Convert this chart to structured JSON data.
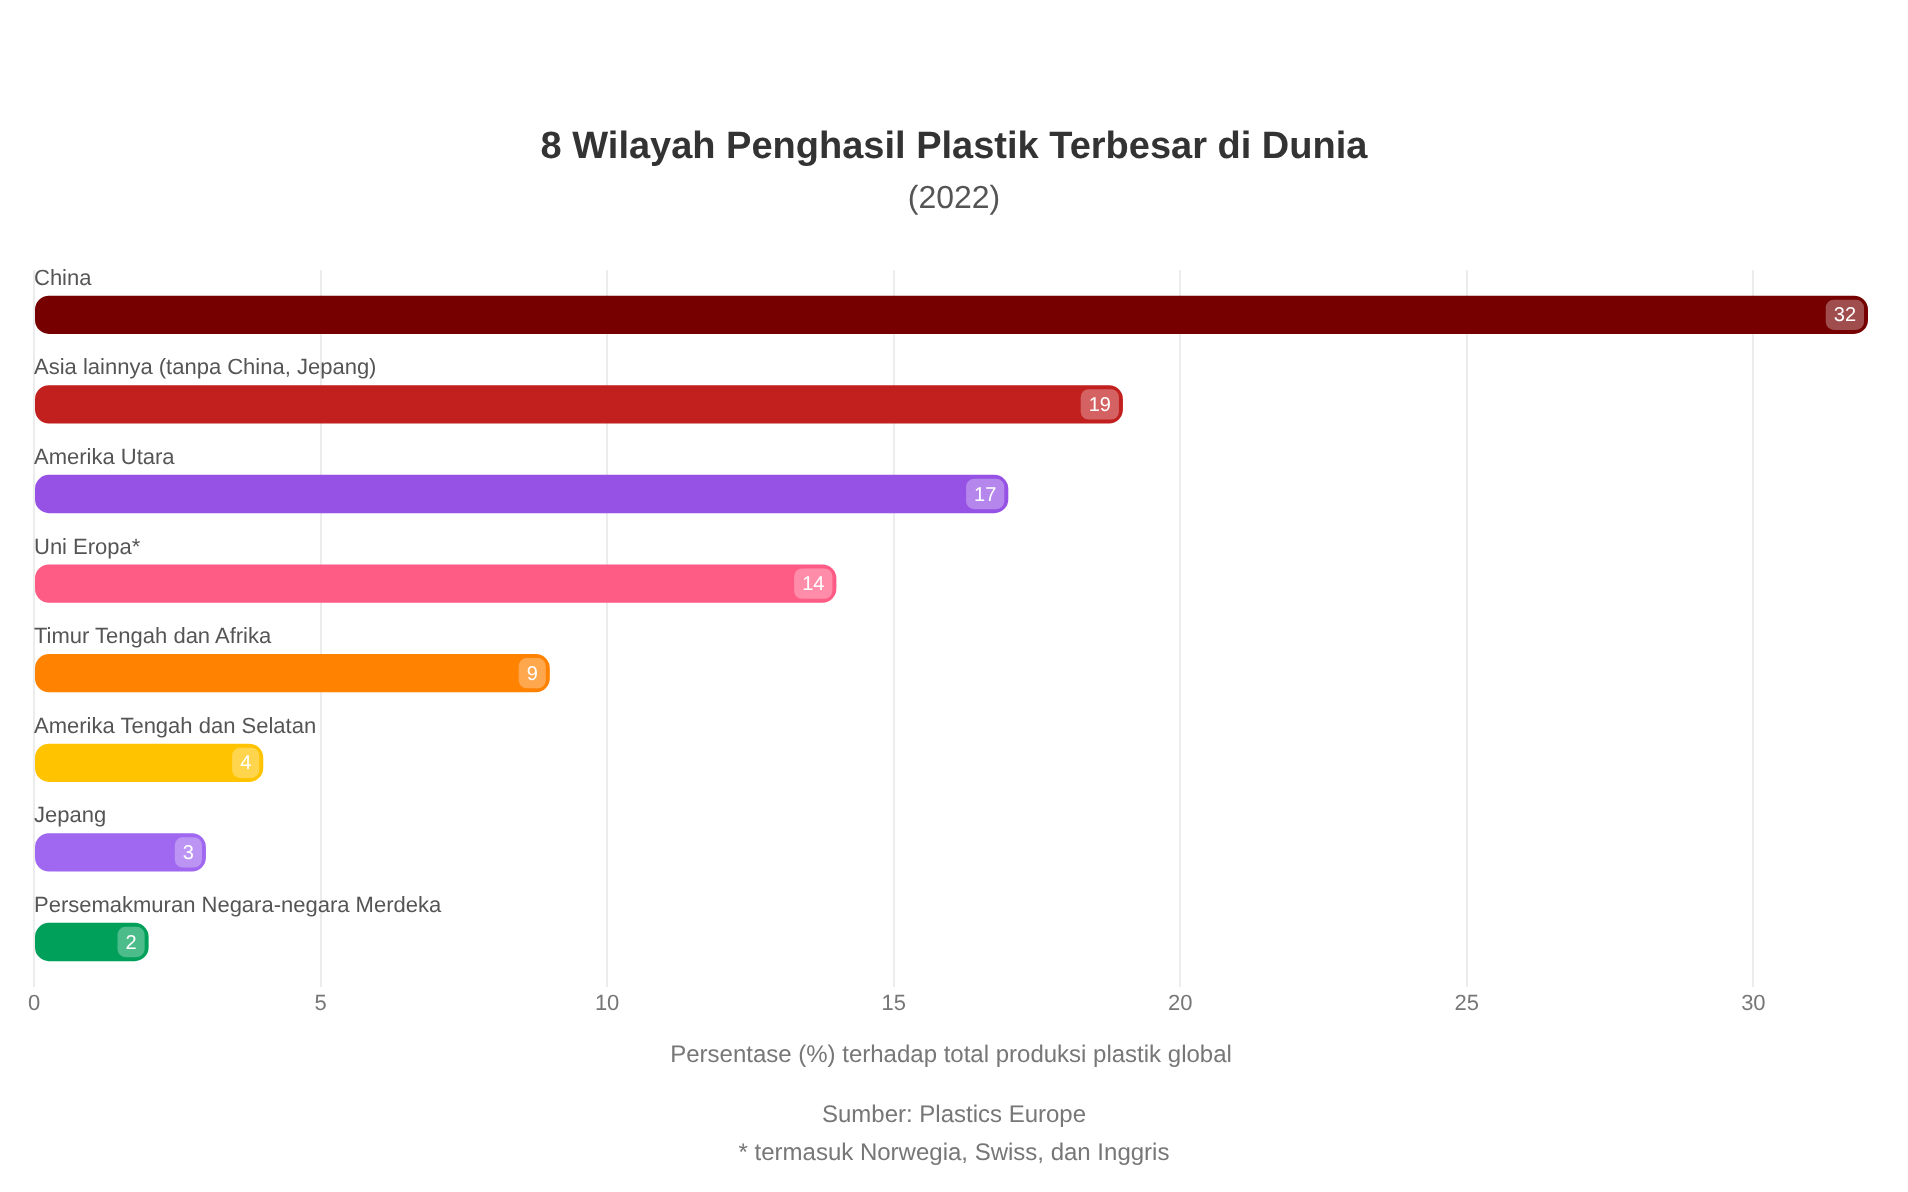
{
  "chart_data": {
    "type": "bar",
    "orientation": "horizontal",
    "title": "8 Wilayah Penghasil Plastik Terbesar di Dunia",
    "subtitle": "(2022)",
    "categories": [
      "China",
      "Asia lainnya (tanpa China, Jepang)",
      "Amerika Utara",
      "Uni Eropa*",
      "Timur Tengah dan Afrika",
      "Amerika Tengah dan Selatan",
      "Jepang",
      "Persemakmuran Negara-negara Merdeka"
    ],
    "values": [
      32,
      19,
      17,
      14,
      9,
      4,
      3,
      2
    ],
    "colors": [
      "#760000",
      "#c21f1f",
      "#9652e4",
      "#ff5c85",
      "#ff8200",
      "#ffc300",
      "#a067f0",
      "#00a05a"
    ],
    "xlim": [
      0,
      32
    ],
    "xticks": [
      0,
      5,
      10,
      15,
      20,
      25,
      30
    ],
    "xlabel": "Persentase (%) terhadap total produksi plastik global",
    "grid": "x",
    "data_labels": true,
    "annotations": [
      "Sumber: Plastics Europe",
      "* termasuk Norwegia, Swiss, dan Inggris"
    ]
  }
}
